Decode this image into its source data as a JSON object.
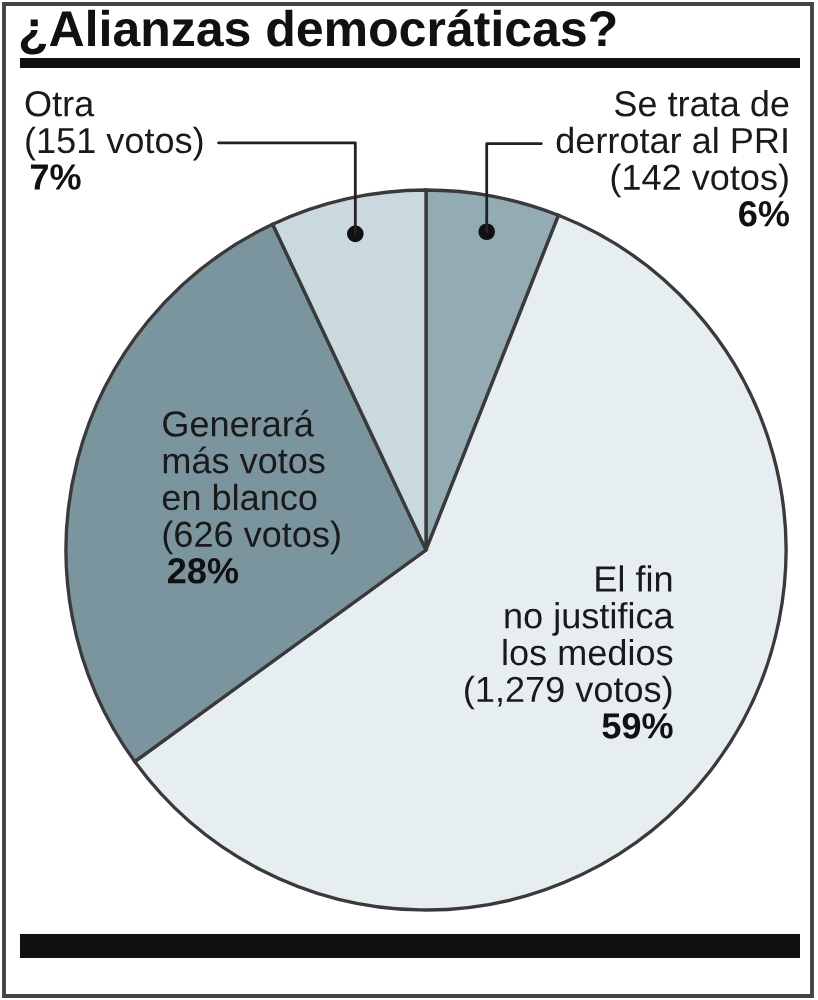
{
  "chart_data": {
    "type": "pie",
    "title": "¿Alianzas democráticas?",
    "categories": [
      "Se trata de\nderrotar al PRI\n(142 votos)",
      "El fin\nno justifica\nlos medios\n(1,279 votos)",
      "Generará\nmás votos\nen blanco\n(626 votos)",
      "Otra\n(151 votos)"
    ],
    "values": [
      6,
      59,
      28,
      7
    ],
    "value_labels": [
      "6%",
      "59%",
      "28%",
      "7%"
    ],
    "colors": [
      "#93abb3",
      "#e6eef1",
      "#7b959e",
      "#c9d9de"
    ]
  }
}
